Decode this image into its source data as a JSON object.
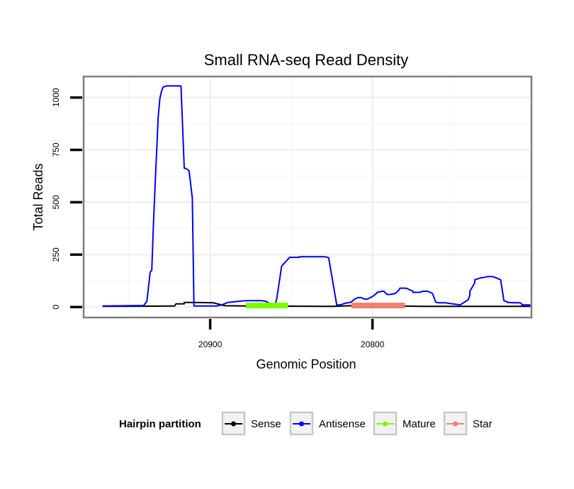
{
  "chart_data": {
    "type": "line",
    "title": "Small RNA-seq Read Density",
    "xlabel": "Genomic Position",
    "ylabel": "Total Reads",
    "x_reversed": true,
    "xlim": [
      20978,
      20702
    ],
    "ylim": [
      -50,
      1100
    ],
    "x_ticks": [
      20900,
      20800
    ],
    "y_ticks": [
      0,
      250,
      500,
      750,
      1000
    ],
    "grid": true,
    "legend_position": "bottom",
    "legend": {
      "title": "Hairpin partition",
      "items": [
        {
          "label": "Sense",
          "color": "#000000"
        },
        {
          "label": "Antisense",
          "color": "#0000ff"
        },
        {
          "label": "Mature",
          "color": "#7cfc00"
        },
        {
          "label": "Star",
          "color": "#f08070"
        }
      ]
    },
    "series": [
      {
        "name": "Sense",
        "color": "#000000",
        "x": [
          20966,
          20935,
          20922,
          20921,
          20916,
          20916,
          20912,
          20904,
          20898,
          20891,
          20876,
          20830,
          20824,
          20808,
          20770,
          20703
        ],
        "y": [
          3,
          4,
          5,
          15,
          15,
          22,
          22,
          21,
          20,
          6,
          5,
          3,
          3,
          8,
          3,
          3
        ]
      },
      {
        "name": "Antisense",
        "color": "#0000ff",
        "x": [
          20966,
          20941,
          20939,
          20937,
          20936,
          20935,
          20934,
          20932,
          20931,
          20930,
          20929,
          20927,
          20924,
          20920,
          20918,
          20918,
          20916,
          20915,
          20913,
          20911,
          20910,
          20906,
          20904,
          20896,
          20893,
          20889,
          20885,
          20880,
          20877,
          20872,
          20869,
          20866,
          20864,
          20863,
          20860,
          20859,
          20858,
          20856,
          20851,
          20848,
          20847,
          20845,
          20845,
          20831,
          20829,
          20827,
          20822,
          20820,
          20818,
          20817,
          20815,
          20813,
          20811,
          20809,
          20807,
          20805,
          20803,
          20800,
          20798,
          20797,
          20794,
          20793,
          20791,
          20789,
          20786,
          20784,
          20783,
          20780,
          20779,
          20775,
          20775,
          20771,
          20769,
          20766,
          20763,
          20761,
          20759,
          20755,
          20746,
          20741,
          20740,
          20740,
          20737,
          20737,
          20733,
          20732,
          20729,
          20729,
          20728,
          20726,
          20724,
          20721,
          20719,
          20717,
          20717,
          20712,
          20709,
          20708,
          20708,
          20703
        ],
        "y": [
          5,
          7,
          27,
          166,
          176,
          392,
          575,
          910,
          995,
          1030,
          1050,
          1055,
          1055,
          1055,
          1055,
          1055,
          662,
          662,
          650,
          520,
          5,
          5,
          5,
          5,
          10,
          22,
          25,
          29,
          30,
          30,
          30,
          28,
          20,
          15,
          10,
          40,
          90,
          195,
          237,
          237,
          237,
          237,
          240,
          240,
          240,
          235,
          10,
          10,
          15,
          18,
          20,
          24,
          38,
          45,
          45,
          38,
          38,
          50,
          62,
          70,
          75,
          75,
          60,
          60,
          65,
          78,
          90,
          90,
          89,
          75,
          70,
          70,
          75,
          75,
          65,
          23,
          20,
          20,
          10,
          35,
          55,
          75,
          115,
          130,
          140,
          140,
          145,
          145,
          145,
          145,
          140,
          130,
          30,
          25,
          22,
          20,
          20,
          15,
          10,
          10
        ]
      },
      {
        "name": "Mature",
        "color": "#7cfc00",
        "x": [
          20878,
          20852
        ],
        "y": [
          7,
          7
        ]
      },
      {
        "name": "Star",
        "color": "#f08070",
        "x": [
          20813,
          20780
        ],
        "y": [
          7,
          7
        ]
      }
    ]
  }
}
